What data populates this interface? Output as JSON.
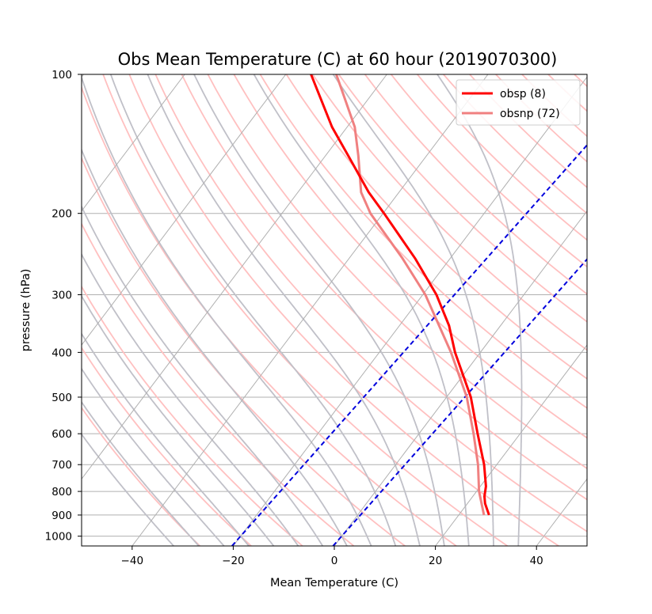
{
  "chart_data": {
    "type": "line",
    "title": "Obs Mean Temperature (C) at 60 hour (2019070300)",
    "xlabel": "Mean Temperature (C)",
    "ylabel": "pressure (hPa)",
    "xlim": [
      -50,
      50
    ],
    "ylim": [
      1050,
      100
    ],
    "y_scale": "log",
    "skew_diagram": true,
    "x_ticks": [
      -40,
      -20,
      0,
      20,
      40
    ],
    "y_ticks": [
      100,
      200,
      300,
      400,
      500,
      600,
      700,
      800,
      900,
      1000
    ],
    "grid": true,
    "legend_position": "top-right",
    "series": [
      {
        "name": "obsp (8)",
        "color": "#ff0000",
        "pressure": [
          900,
          850,
          820,
          780,
          700,
          600,
          500,
          400,
          350,
          300,
          250,
          200,
          180,
          150,
          130,
          100
        ],
        "temperature": [
          26,
          23.5,
          22.3,
          21.1,
          17.5,
          11.6,
          4.8,
          -5.0,
          -10.2,
          -17.3,
          -27.0,
          -39.8,
          -46.0,
          -55.5,
          -63.0,
          -75.0
        ]
      },
      {
        "name": "obsnp (72)",
        "color": "#f08080",
        "pressure": [
          900,
          800,
          700,
          600,
          500,
          400,
          300,
          250,
          200,
          180,
          150,
          130,
          100
        ],
        "temperature": [
          25,
          20.5,
          16.3,
          10.8,
          4.0,
          -5.8,
          -19.5,
          -29.5,
          -42.5,
          -47.5,
          -53.5,
          -58.5,
          -70.0
        ]
      }
    ],
    "reference_lines": {
      "isotherm_color": "#b0b0b0",
      "dry_adiabat_color": "#ffc0c0",
      "moist_adiabat_color": "#c0c0c8",
      "mixing_ratio_color": "#0000dd"
    }
  }
}
